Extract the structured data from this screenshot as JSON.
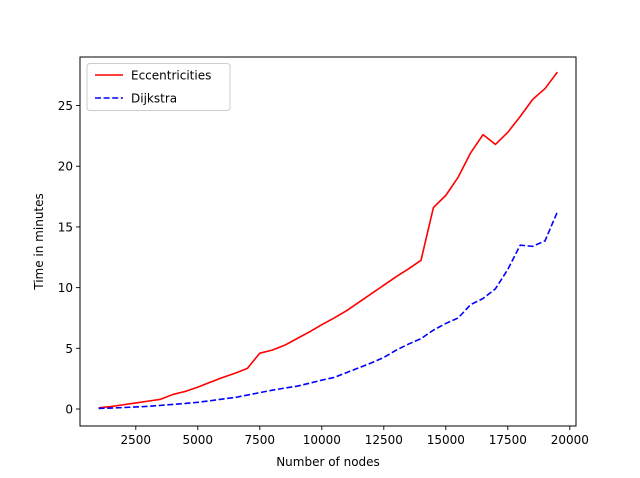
{
  "chart_data": {
    "type": "line",
    "xlabel": "Number of nodes",
    "ylabel": "Time in minutes",
    "xlim": [
      250,
      20250
    ],
    "ylim": [
      -1.4,
      29.0
    ],
    "xticks": [
      2500,
      5000,
      7500,
      10000,
      12500,
      15000,
      17500,
      20000
    ],
    "yticks": [
      0,
      5,
      10,
      15,
      20,
      25
    ],
    "grid": false,
    "legend_position": "top-left",
    "series": [
      {
        "name": "Eccentricities",
        "color": "#ff0000",
        "dash": "solid",
        "x": [
          1000,
          1500,
          2000,
          2500,
          3000,
          3500,
          4000,
          4500,
          5000,
          5500,
          6000,
          6500,
          7000,
          7500,
          8000,
          8500,
          9000,
          9500,
          10000,
          10500,
          11000,
          11500,
          12000,
          12500,
          13000,
          13500,
          14000,
          14500,
          15000,
          15500,
          16000,
          16500,
          17000,
          17500,
          18000,
          18500,
          19000,
          19500
        ],
        "y": [
          0.1,
          0.2,
          0.35,
          0.5,
          0.65,
          0.8,
          1.2,
          1.45,
          1.8,
          2.2,
          2.6,
          2.95,
          3.35,
          4.6,
          4.85,
          5.25,
          5.8,
          6.35,
          6.95,
          7.5,
          8.1,
          8.8,
          9.5,
          10.2,
          10.9,
          11.55,
          12.25,
          16.6,
          17.6,
          19.1,
          21.1,
          22.6,
          21.8,
          22.8,
          24.1,
          25.5,
          26.4,
          27.75
        ]
      },
      {
        "name": "Dijkstra",
        "color": "#0000ff",
        "dash": "dashed",
        "x": [
          1000,
          1500,
          2000,
          2500,
          3000,
          3500,
          4000,
          4500,
          5000,
          5500,
          6000,
          6500,
          7000,
          7500,
          8000,
          8500,
          9000,
          9500,
          10000,
          10500,
          11000,
          11500,
          12000,
          12500,
          13000,
          13500,
          14000,
          14500,
          15000,
          15500,
          16000,
          16500,
          17000,
          17500,
          18000,
          18500,
          19000,
          19500
        ],
        "y": [
          0.05,
          0.08,
          0.12,
          0.17,
          0.22,
          0.3,
          0.38,
          0.46,
          0.55,
          0.68,
          0.82,
          0.95,
          1.15,
          1.35,
          1.55,
          1.72,
          1.88,
          2.12,
          2.38,
          2.6,
          3.0,
          3.4,
          3.8,
          4.25,
          4.85,
          5.35,
          5.8,
          6.5,
          7.05,
          7.5,
          8.6,
          9.1,
          9.9,
          11.5,
          13.5,
          13.4,
          13.85,
          16.25
        ]
      }
    ]
  }
}
